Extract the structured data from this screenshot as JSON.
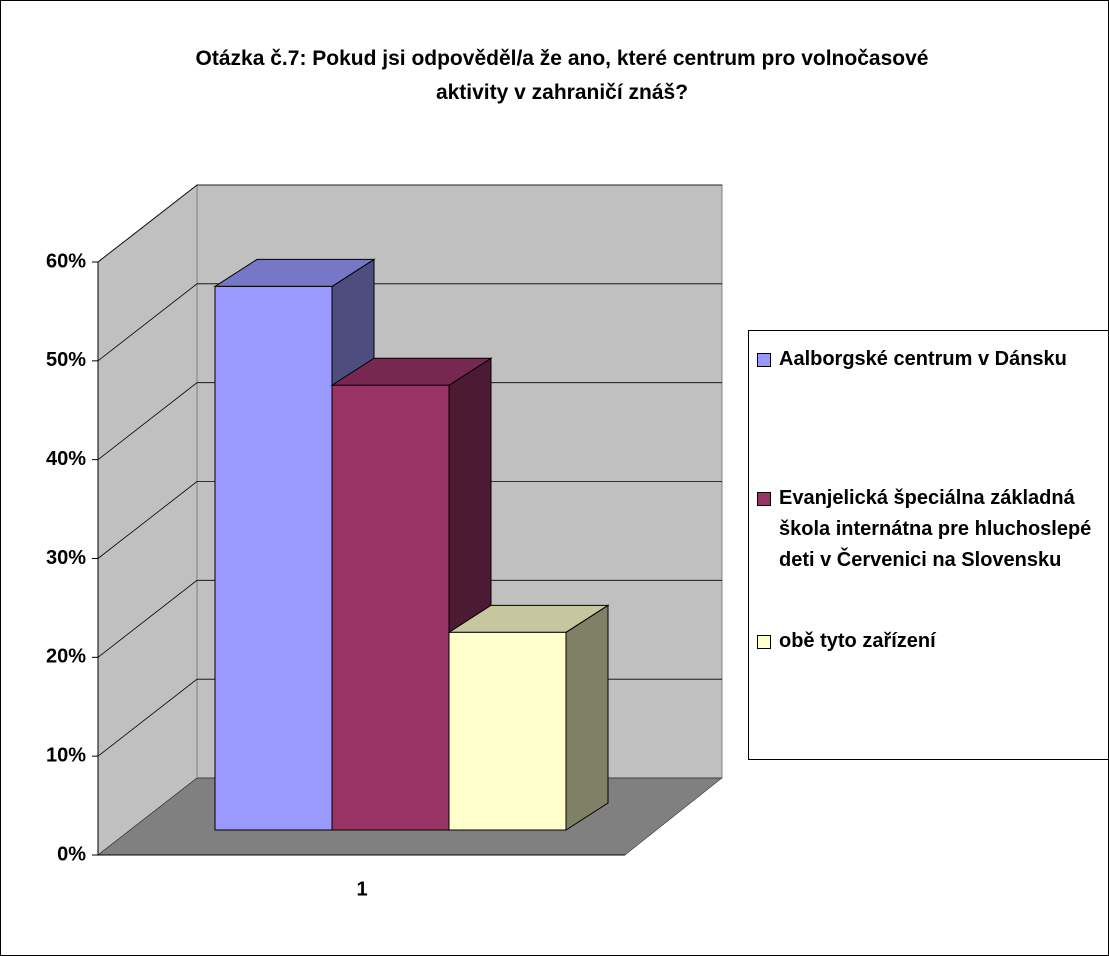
{
  "chart_data": {
    "type": "bar3d",
    "title": "Otázka č.7: Pokud jsi odpověděl/a že ano, které centrum pro volnočasové aktivity v zahraničí znáš?",
    "categories": [
      "1"
    ],
    "series": [
      {
        "name": "Aalborgské centrum v Dánsku",
        "color": "#9999ff",
        "values": [
          55
        ]
      },
      {
        "name": "Evanjelická špeciálna základná škola internátna pre hluchoslepé deti v Červenici na Slovensku",
        "color": "#993366",
        "values": [
          45
        ]
      },
      {
        "name": "obě tyto zařízení",
        "color": "#ffffcc",
        "values": [
          20
        ]
      }
    ],
    "ylim": [
      0,
      60
    ],
    "yticks": [
      {
        "value": 0,
        "label": "0%"
      },
      {
        "value": 10,
        "label": "10%"
      },
      {
        "value": 20,
        "label": "20%"
      },
      {
        "value": 30,
        "label": "30%"
      },
      {
        "value": 40,
        "label": "40%"
      },
      {
        "value": 50,
        "label": "50%"
      },
      {
        "value": 60,
        "label": "60%"
      }
    ],
    "grid": true,
    "legend": "right"
  }
}
